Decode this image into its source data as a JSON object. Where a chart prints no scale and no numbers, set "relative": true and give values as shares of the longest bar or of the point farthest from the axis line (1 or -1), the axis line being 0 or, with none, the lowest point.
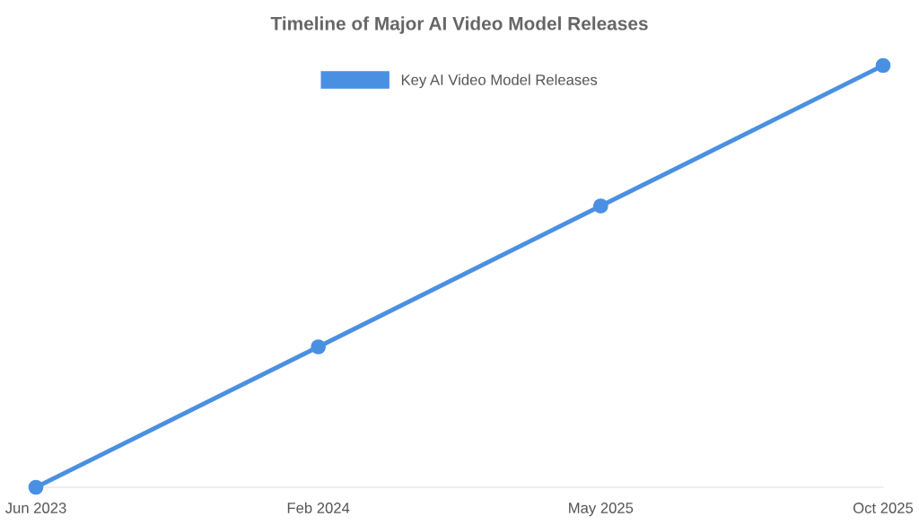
{
  "chart_data": {
    "type": "line",
    "title": "Timeline of Major AI Video Model Releases",
    "categories": [
      "Jun 2023",
      "Feb 2024",
      "May 2025",
      "Oct 2025"
    ],
    "series": [
      {
        "name": "Key AI Video Model Releases",
        "color": "#4a90e2",
        "values": [
          0,
          0.333,
          0.667,
          1
        ]
      }
    ],
    "relative": true,
    "marker": "circle",
    "legend": "top",
    "grid": false
  }
}
